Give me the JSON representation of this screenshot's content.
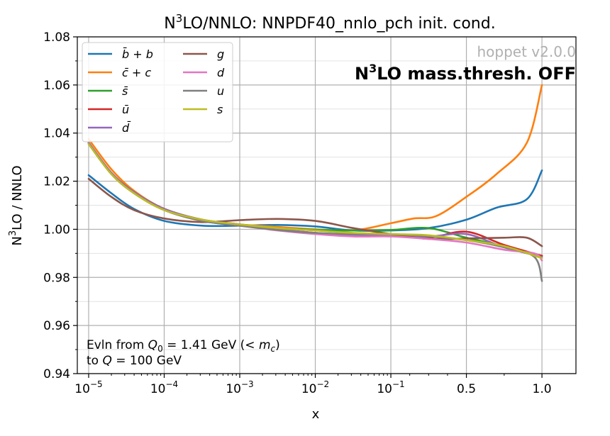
{
  "chart_data": {
    "type": "line",
    "title": {
      "base": "N",
      "sup": "3",
      "rest": "LO/NNLO: NNPDF40_nnlo_pch init. cond."
    },
    "xlabel": "x",
    "ylabel": {
      "base": "N",
      "sup": "3",
      "rest": "LO / NNLO"
    },
    "ylim": [
      0.94,
      1.08
    ],
    "yticks": [
      "0.94",
      "0.96",
      "0.98",
      "1.00",
      "1.02",
      "1.04",
      "1.06",
      "1.08"
    ],
    "xtick_labels": [
      {
        "base": "10",
        "exp": "−5"
      },
      {
        "base": "10",
        "exp": "−4"
      },
      {
        "base": "10",
        "exp": "−3"
      },
      {
        "base": "10",
        "exp": "−2"
      },
      {
        "base": "10",
        "exp": "−1"
      },
      {
        "base": "0.5",
        "exp": ""
      },
      {
        "base": "1.0",
        "exp": ""
      }
    ],
    "annotations": {
      "version": "hoppet v2.0.0",
      "mass_thresh": {
        "base": "N",
        "sup": "3",
        "rest": "LO mass.thresh. OFF"
      },
      "evln_line1": {
        "text": "Evln from ",
        "q0_label": "Q",
        "q0_sub": "0",
        "q0_value": " = 1.41 GeV (< ",
        "mc_label": "m",
        "mc_sub": "c",
        "close": ")"
      },
      "evln_line2": {
        "text": "to ",
        "q_label": "Q",
        "q_value": " = 100 GeV"
      }
    },
    "legend_position": "top-left",
    "legend": [
      {
        "label": "b̄ + b",
        "color": "#1f77b4"
      },
      {
        "label": "c̄ + c",
        "color": "#ff7f0e"
      },
      {
        "label": "s̄",
        "color": "#2ca02c"
      },
      {
        "label": "ū",
        "color": "#d62728"
      },
      {
        "label": "d̄",
        "color": "#9467bd"
      },
      {
        "label": "g",
        "color": "#8c564b"
      },
      {
        "label": "d",
        "color": "#e377c2"
      },
      {
        "label": "u",
        "color": "#7f7f7f"
      },
      {
        "label": "s",
        "color": "#bcbd22"
      }
    ],
    "x_axis_positions": [
      0,
      1,
      2,
      3,
      4,
      5,
      6
    ],
    "series": [
      {
        "name": "b̄ + b",
        "color": "#1f77b4",
        "x": [
          0,
          0.3,
          0.6,
          1.0,
          1.5,
          2.0,
          2.5,
          3.0,
          3.5,
          4.0,
          4.5,
          5.0,
          5.4,
          5.8,
          6.0
        ],
        "y": [
          1.0225,
          1.015,
          1.0085,
          1.0035,
          1.0015,
          1.0015,
          1.0018,
          1.0012,
          0.9995,
          0.9995,
          1.0005,
          1.004,
          1.009,
          1.0125,
          1.0245
        ]
      },
      {
        "name": "c̄ + c",
        "color": "#ff7f0e",
        "x": [
          0,
          0.3,
          0.6,
          1.0,
          1.5,
          2.0,
          2.5,
          3.0,
          3.5,
          4.0,
          4.3,
          4.6,
          5.0,
          5.4,
          5.8,
          6.0
        ],
        "y": [
          1.0375,
          1.025,
          1.016,
          1.0085,
          1.004,
          1.002,
          1.001,
          1.0,
          0.9995,
          1.0025,
          1.0045,
          1.0055,
          1.0135,
          1.023,
          1.036,
          1.06
        ]
      },
      {
        "name": "s̄",
        "color": "#2ca02c",
        "x": [
          0,
          0.3,
          0.6,
          1.0,
          1.5,
          2.0,
          2.5,
          3.0,
          3.5,
          4.0,
          4.5,
          5.0,
          5.5,
          6.0
        ],
        "y": [
          1.036,
          1.0235,
          1.0155,
          1.0085,
          1.004,
          1.002,
          1.0005,
          0.9998,
          0.9995,
          0.9997,
          1.0005,
          0.9965,
          0.993,
          0.989
        ]
      },
      {
        "name": "ū",
        "color": "#d62728",
        "x": [
          0,
          0.3,
          0.6,
          1.0,
          1.5,
          2.0,
          2.5,
          3.0,
          3.5,
          4.0,
          4.5,
          5.0,
          5.5,
          6.0
        ],
        "y": [
          1.036,
          1.0235,
          1.0155,
          1.0085,
          1.004,
          1.002,
          1.0,
          0.9985,
          0.9975,
          0.9975,
          0.9965,
          0.999,
          0.9935,
          0.989
        ]
      },
      {
        "name": "d̄",
        "color": "#9467bd",
        "x": [
          0,
          0.3,
          0.6,
          1.0,
          1.5,
          2.0,
          2.5,
          3.0,
          3.5,
          4.0,
          4.5,
          5.0,
          5.5,
          6.0
        ],
        "y": [
          1.036,
          1.0235,
          1.0155,
          1.0085,
          1.004,
          1.002,
          1.0,
          0.9985,
          0.9975,
          0.9975,
          0.997,
          0.998,
          0.9925,
          0.9885
        ]
      },
      {
        "name": "g",
        "color": "#8c564b",
        "x": [
          0,
          0.3,
          0.6,
          1.0,
          1.5,
          2.0,
          2.5,
          3.0,
          3.5,
          4.0,
          4.5,
          5.0,
          5.5,
          5.8,
          6.0
        ],
        "y": [
          1.021,
          1.0135,
          1.008,
          1.0045,
          1.003,
          1.0038,
          1.0043,
          1.0035,
          1.0005,
          0.998,
          0.996,
          0.9962,
          0.9965,
          0.9965,
          0.993
        ]
      },
      {
        "name": "d",
        "color": "#e377c2",
        "x": [
          0,
          0.3,
          0.6,
          1.0,
          1.5,
          2.0,
          2.5,
          3.0,
          3.5,
          4.0,
          4.5,
          5.0,
          5.5,
          5.9,
          6.0
        ],
        "y": [
          1.0355,
          1.023,
          1.015,
          1.008,
          1.0035,
          1.0015,
          0.9995,
          0.998,
          0.997,
          0.997,
          0.996,
          0.9945,
          0.9915,
          0.99,
          0.987
        ]
      },
      {
        "name": "u",
        "color": "#7f7f7f",
        "x": [
          0,
          0.3,
          0.6,
          1.0,
          1.5,
          2.0,
          2.5,
          3.0,
          3.5,
          4.0,
          4.5,
          5.0,
          5.5,
          5.9,
          6.0
        ],
        "y": [
          1.0355,
          1.023,
          1.015,
          1.008,
          1.0035,
          1.0015,
          0.9997,
          0.9985,
          0.998,
          0.998,
          0.997,
          0.9955,
          0.9925,
          0.9885,
          0.9785
        ]
      },
      {
        "name": "s",
        "color": "#bcbd22",
        "x": [
          0,
          0.3,
          0.6,
          1.0,
          1.5,
          2.0,
          2.5,
          3.0,
          3.5,
          4.0,
          4.5,
          5.0,
          5.5,
          6.0
        ],
        "y": [
          1.0355,
          1.023,
          1.015,
          1.008,
          1.004,
          1.002,
          1.0005,
          0.9995,
          0.9985,
          0.998,
          0.9975,
          0.9955,
          0.993,
          0.988
        ]
      }
    ]
  }
}
